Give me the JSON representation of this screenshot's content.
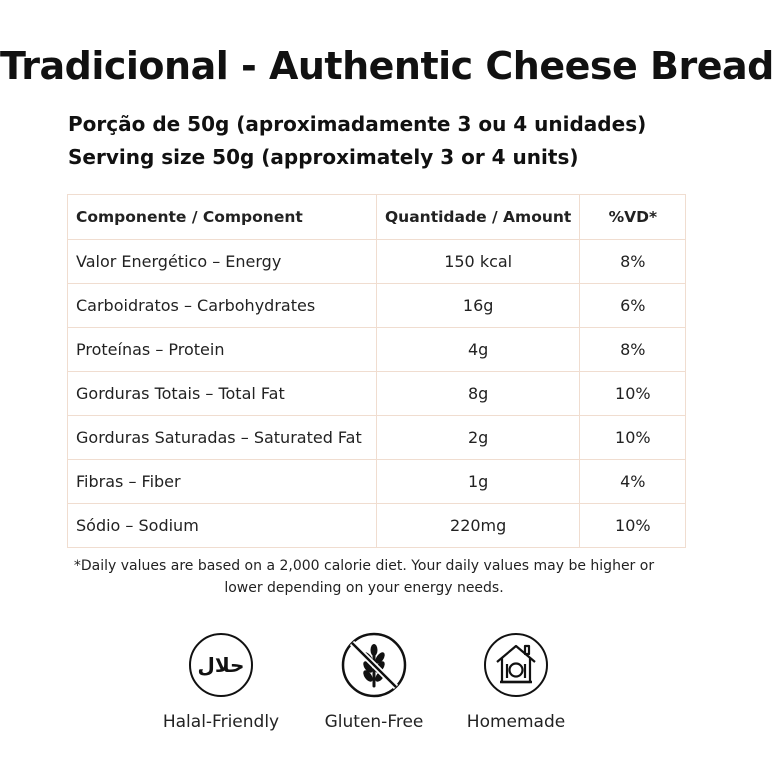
{
  "title": "Tradicional - Authentic Cheese Bread",
  "serving": {
    "pt": "Porção de 50g (aproximadamente 3 ou 4 unidades)",
    "en": "Serving size 50g (approximately 3 or 4 units)"
  },
  "table": {
    "headers": [
      "Componente / Component",
      "Quantidade / Amount",
      "%VD*"
    ],
    "rows": [
      [
        "Valor Energético – Energy",
        "150 kcal",
        "8%"
      ],
      [
        "Carboidratos – Carbohydrates",
        "16g",
        "6%"
      ],
      [
        "Proteínas – Protein",
        "4g",
        "8%"
      ],
      [
        "Gorduras Totais – Total Fat",
        "8g",
        "10%"
      ],
      [
        "Gorduras Saturadas – Saturated Fat",
        "2g",
        "10%"
      ],
      [
        "Fibras – Fiber",
        "1g",
        "4%"
      ],
      [
        "Sódio – Sodium",
        "220mg",
        "10%"
      ]
    ]
  },
  "footnote": {
    "line1": "*Daily values are based on a 2,000 calorie diet. Your daily values may be higher or",
    "line2": "lower depending on your energy needs."
  },
  "badges": [
    {
      "label": "Halal-Friendly",
      "icon": "halal-icon",
      "glyph": "حلال"
    },
    {
      "label": "Gluten-Free",
      "icon": "gluten-free-icon"
    },
    {
      "label": "Homemade",
      "icon": "homemade-icon"
    }
  ]
}
